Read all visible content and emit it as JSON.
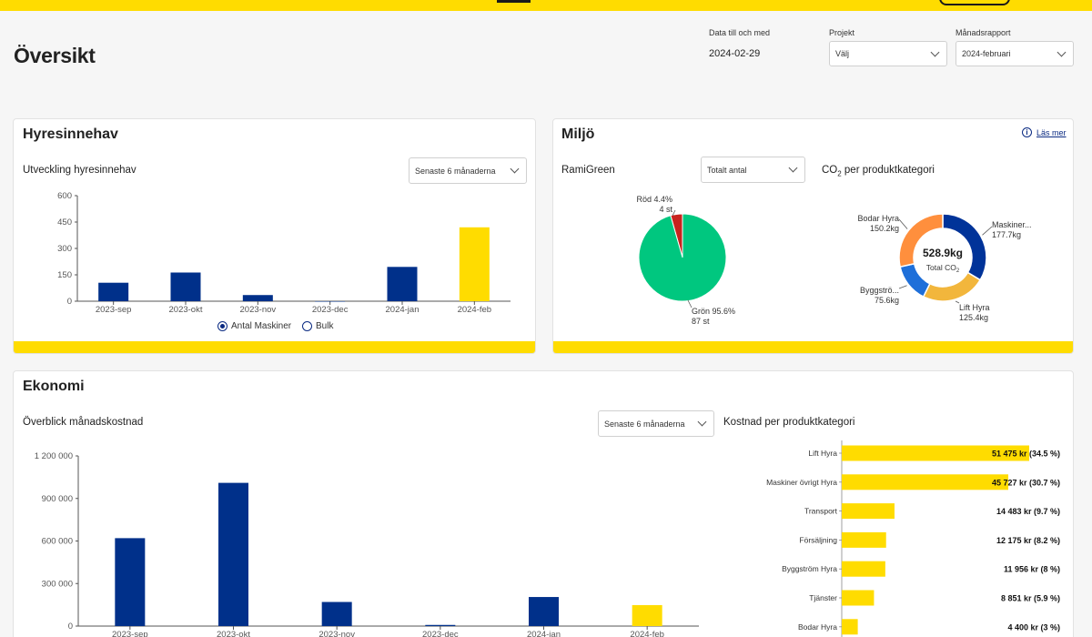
{
  "page": {
    "title": "Översikt"
  },
  "filters": {
    "date_label": "Data till och med",
    "date_value": "2024-02-29",
    "project_label": "Projekt",
    "project_value": "Välj",
    "report_label": "Månadsrapport",
    "report_value": "2024-februari"
  },
  "hyres": {
    "title": "Hyresinnehav",
    "subtitle": "Utveckling hyresinnehav",
    "period_select": "Senaste 6 månaderna",
    "legend": [
      {
        "label": "Antal Maskiner",
        "selected": true
      },
      {
        "label": "Bulk",
        "selected": false
      }
    ]
  },
  "miljo": {
    "title": "Miljö",
    "info_link": "Läs mer",
    "ramigreen_label": "RamiGreen",
    "count_select": "Totalt antal",
    "co2_title_pre": "CO",
    "co2_title_sub": "2",
    "co2_title_post": " per produktkategori",
    "donut_total": "528.9kg",
    "donut_total_label_pre": "Total CO",
    "donut_total_label_sub": "2"
  },
  "ekonomi": {
    "title": "Ekonomi",
    "subtitle": "Överblick månadskostnad",
    "period_select": "Senaste 6 månaderna",
    "category_title": "Kostnad per produktkategori"
  },
  "colors": {
    "navy": "#00308a",
    "yellow": "#ffdc00",
    "green": "#00c77f",
    "red": "#c8231e",
    "donut_navy": "#003399",
    "donut_orange": "#ff8f3d",
    "donut_blue": "#1e6fd9",
    "donut_gold": "#f2b63c"
  },
  "chart_data": [
    {
      "id": "hyresinnehav",
      "type": "bar",
      "categories": [
        "2023-sep",
        "2023-okt",
        "2023-nov",
        "2023-dec",
        "2024-jan",
        "2024-feb"
      ],
      "series": [
        {
          "name": "Antal Maskiner",
          "values": [
            105,
            163,
            35,
            0,
            195,
            420
          ]
        }
      ],
      "yticks": [
        "0",
        "150",
        "300",
        "450",
        "600"
      ],
      "ylim": [
        0,
        600
      ],
      "highlight_last": true
    },
    {
      "id": "ramigreen",
      "type": "pie",
      "slices": [
        {
          "label": "Röd 4.4%",
          "count": "4 st",
          "value": 4.4
        },
        {
          "label": "Grön 95.6%",
          "count": "87 st",
          "value": 95.6
        }
      ]
    },
    {
      "id": "co2",
      "type": "pie",
      "unit": "kg",
      "slices": [
        {
          "label": "Maskiner...",
          "value_label": "177.7kg",
          "value": 177.7
        },
        {
          "label": "Lift Hyra",
          "value_label": "125.4kg",
          "value": 125.4
        },
        {
          "label": "Byggströ...",
          "value_label": "75.6kg",
          "value": 75.6
        },
        {
          "label": "Bodar Hyra",
          "value_label": "150.2kg",
          "value": 150.2
        }
      ]
    },
    {
      "id": "manadskostnad",
      "type": "bar",
      "categories": [
        "2023-sep",
        "2023-okt",
        "2023-nov",
        "2023-dec",
        "2024-jan",
        "2024-feb"
      ],
      "series": [
        {
          "values": [
            620000,
            1010000,
            170000,
            8000,
            205000,
            148000
          ]
        }
      ],
      "yticks": [
        "0",
        "300 000",
        "600 000",
        "900 000",
        "1 200 000"
      ],
      "ylim": [
        0,
        1200000
      ],
      "highlight_last": true
    },
    {
      "id": "kostnad_per_kategori",
      "type": "bar",
      "orientation": "horizontal",
      "categories": [
        "Lift Hyra",
        "Maskiner övrigt Hyra",
        "Transport",
        "Försäljning",
        "Byggström Hyra",
        "Tjänster",
        "Bodar Hyra"
      ],
      "values": [
        51475,
        45727,
        14483,
        12175,
        11956,
        8851,
        4400
      ],
      "value_labels": [
        "51 475 kr",
        "45 727 kr",
        "14 483 kr",
        "12 175 kr",
        "11 956 kr",
        "8 851 kr",
        "4 400 kr"
      ],
      "share_labels": [
        "(34.5 %)",
        "(30.7 %)",
        "(9.7 %)",
        "(8.2 %)",
        "(8 %)",
        "(5.9 %)",
        "(3 %)"
      ]
    }
  ]
}
